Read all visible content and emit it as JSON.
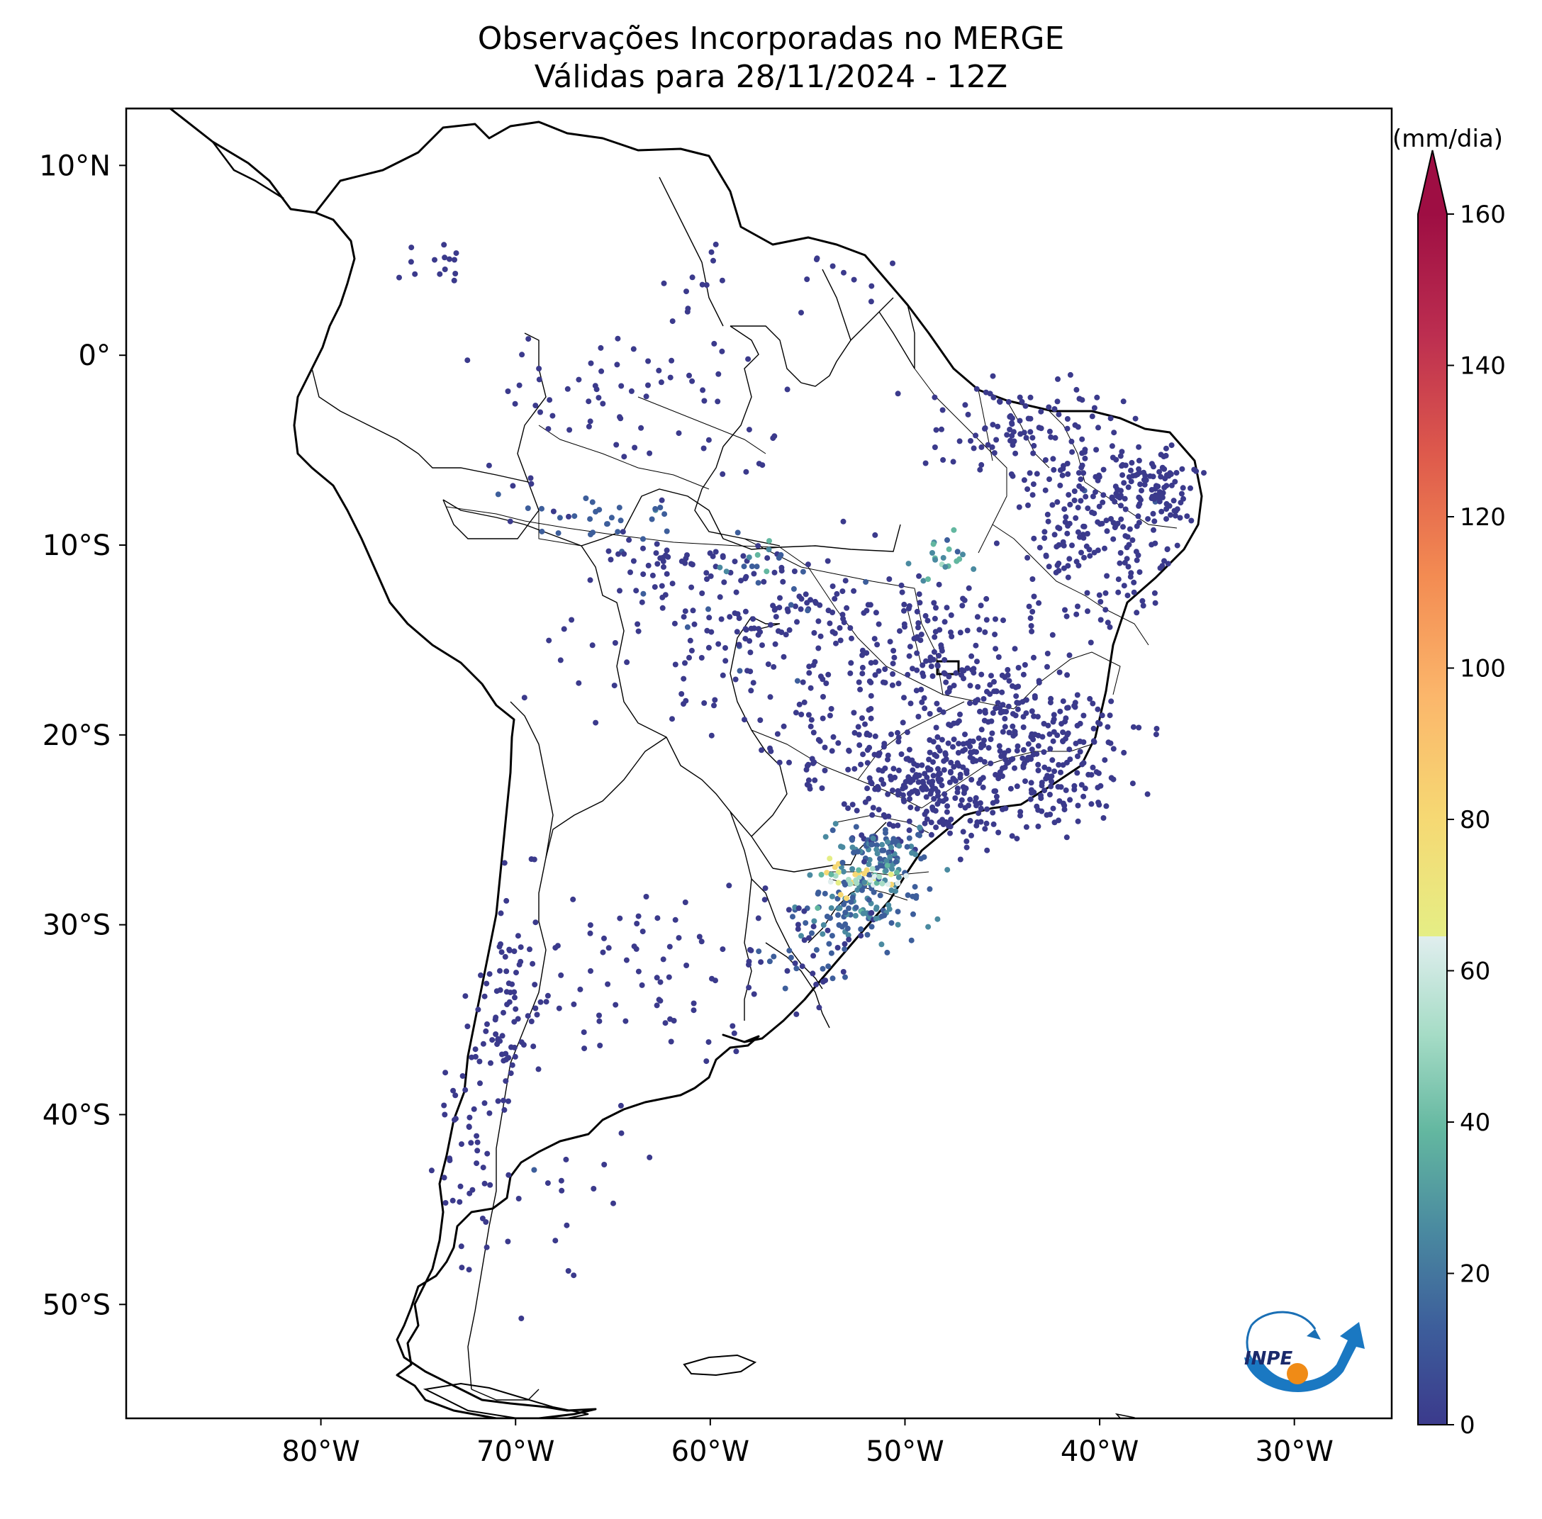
{
  "title": "Observações Incorporadas no MERGE",
  "subtitle": "Válidas para 28/11/2024 - 12Z",
  "map": {
    "lon_range": [
      -90,
      -25
    ],
    "lat_range": [
      -56,
      13
    ],
    "lat_ticks": [
      {
        "value": 10,
        "label": "10°N"
      },
      {
        "value": 0,
        "label": "0°"
      },
      {
        "value": -10,
        "label": "10°S"
      },
      {
        "value": -20,
        "label": "20°S"
      },
      {
        "value": -30,
        "label": "30°S"
      },
      {
        "value": -40,
        "label": "40°S"
      },
      {
        "value": -50,
        "label": "50°S"
      }
    ],
    "lon_ticks": [
      {
        "value": -80,
        "label": "80°W"
      },
      {
        "value": -70,
        "label": "70°W"
      },
      {
        "value": -60,
        "label": "60°W"
      },
      {
        "value": -50,
        "label": "50°W"
      },
      {
        "value": -40,
        "label": "40°W"
      },
      {
        "value": -30,
        "label": "30°W"
      }
    ]
  },
  "colorbar": {
    "unit": "(mm/dia)",
    "min": 0,
    "max": 160,
    "extend": "max",
    "ticks": [
      "0",
      "20",
      "40",
      "60",
      "80",
      "100",
      "120",
      "140",
      "160"
    ],
    "gap_range": [
      60,
      160
    ],
    "low_stops": [
      "#3b3a8c",
      "#3d5e9b",
      "#4a8aa0",
      "#63b7a0",
      "#a6dcc6",
      "#e0eeee"
    ],
    "high_stops": [
      "#e5ee85",
      "#f6d873",
      "#fbb66b",
      "#f38b52",
      "#de5a4c",
      "#bc2e50",
      "#9e0e43"
    ]
  },
  "logo": {
    "text": "INPE"
  },
  "observations": {
    "clusters": [
      {
        "lon": -44,
        "lat": -21,
        "slon": 4,
        "slat": 3,
        "n": 320,
        "v": 3
      },
      {
        "lon": -49,
        "lat": -23,
        "slon": 3,
        "slat": 2,
        "n": 200,
        "v": 3
      },
      {
        "lon": -48,
        "lat": -16,
        "slon": 3,
        "slat": 3,
        "n": 150,
        "v": 3
      },
      {
        "lon": -40,
        "lat": -9,
        "slon": 3,
        "slat": 4,
        "n": 220,
        "v": 3
      },
      {
        "lon": -37,
        "lat": -7,
        "slon": 1.5,
        "slat": 1.5,
        "n": 80,
        "v": 3
      },
      {
        "lon": -44,
        "lat": -4,
        "slon": 3,
        "slat": 2,
        "n": 90,
        "v": 3
      },
      {
        "lon": -56,
        "lat": -14,
        "slon": 4,
        "slat": 2.5,
        "n": 140,
        "v": 4
      },
      {
        "lon": -62,
        "lat": -11,
        "slon": 3,
        "slat": 1.5,
        "n": 50,
        "v": 4
      },
      {
        "lon": -54,
        "lat": -20,
        "slon": 3,
        "slat": 2,
        "n": 60,
        "v": 3
      },
      {
        "lon": -51,
        "lat": -26,
        "slon": 2,
        "slat": 1,
        "n": 90,
        "v": 16
      },
      {
        "lon": -52,
        "lat": -29,
        "slon": 2.2,
        "slat": 1.5,
        "n": 110,
        "v": 16
      },
      {
        "lon": -52,
        "lat": -27.5,
        "slon": 1.5,
        "slat": 0.6,
        "n": 50,
        "v": 45
      },
      {
        "lon": -55,
        "lat": -31,
        "slon": 2,
        "slat": 1.5,
        "n": 40,
        "v": 6
      },
      {
        "lon": -64,
        "lat": -3,
        "slon": 6,
        "slat": 3,
        "n": 70,
        "v": 3
      },
      {
        "lon": -66,
        "lat": -8.5,
        "slon": 4,
        "slat": 1,
        "n": 30,
        "v": 10
      },
      {
        "lon": -62,
        "lat": -16,
        "slon": 4,
        "slat": 3,
        "n": 40,
        "v": 3
      },
      {
        "lon": -63,
        "lat": -32,
        "slon": 5,
        "slat": 4,
        "n": 80,
        "v": 3
      },
      {
        "lon": -70.5,
        "lat": -34,
        "slon": 1.2,
        "slat": 5,
        "n": 80,
        "v": 3
      },
      {
        "lon": -72.5,
        "lat": -42,
        "slon": 1.2,
        "slat": 4,
        "n": 40,
        "v": 3
      },
      {
        "lon": -68,
        "lat": -45,
        "slon": 3,
        "slat": 5,
        "n": 20,
        "v": 3
      },
      {
        "lon": -74,
        "lat": 4.5,
        "slon": 1.5,
        "slat": 1,
        "n": 14,
        "v": 3
      },
      {
        "lon": -60,
        "lat": 3.5,
        "slon": 1.5,
        "slat": 1.5,
        "n": 12,
        "v": 3
      },
      {
        "lon": -53,
        "lat": 4,
        "slon": 1.5,
        "slat": 1.5,
        "n": 10,
        "v": 3
      },
      {
        "lon": -48,
        "lat": -10.5,
        "slon": 1.5,
        "slat": 1,
        "n": 20,
        "v": 25
      },
      {
        "lon": -57,
        "lat": -10.5,
        "slon": 1.5,
        "slat": 1,
        "n": 10,
        "v": 22
      }
    ]
  }
}
